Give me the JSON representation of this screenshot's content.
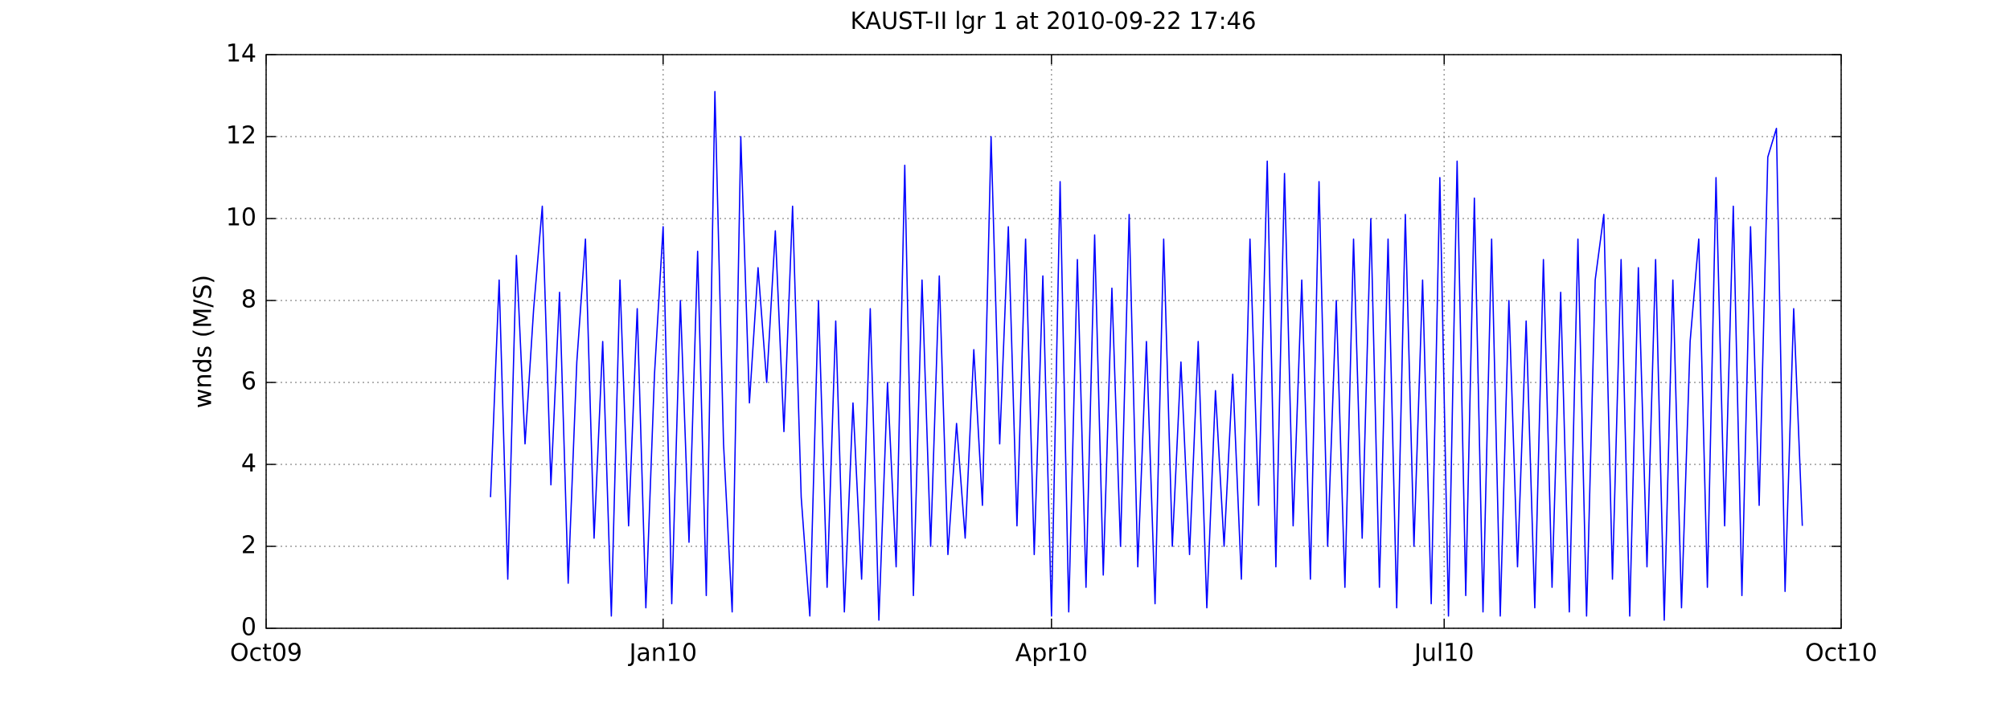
{
  "chart_data": {
    "type": "line",
    "title": "KAUST-II lgr 1 at 2010-09-22 17:46",
    "ylabel": "wnds (M/S)",
    "color": "#0000ff",
    "grid": true,
    "xlim": [
      0,
      365
    ],
    "xticks": [
      {
        "value": 0,
        "label": "Oct09"
      },
      {
        "value": 92,
        "label": "Jan10"
      },
      {
        "value": 182,
        "label": "Apr10"
      },
      {
        "value": 273,
        "label": "Jul10"
      },
      {
        "value": 365,
        "label": "Oct10"
      }
    ],
    "ylim": [
      0,
      14
    ],
    "yticks": [
      0,
      2,
      4,
      6,
      8,
      10,
      12,
      14
    ],
    "x": [
      52,
      54,
      56,
      58,
      60,
      62,
      64,
      66,
      68,
      70,
      72,
      74,
      76,
      78,
      80,
      82,
      84,
      86,
      88,
      90,
      92,
      94,
      96,
      98,
      100,
      102,
      104,
      106,
      108,
      110,
      112,
      114,
      116,
      118,
      120,
      122,
      124,
      126,
      128,
      130,
      132,
      134,
      136,
      138,
      140,
      142,
      144,
      146,
      148,
      150,
      152,
      154,
      156,
      158,
      160,
      162,
      164,
      166,
      168,
      170,
      172,
      174,
      176,
      178,
      180,
      182,
      184,
      186,
      188,
      190,
      192,
      194,
      196,
      198,
      200,
      202,
      204,
      206,
      208,
      210,
      212,
      214,
      216,
      218,
      220,
      222,
      224,
      226,
      228,
      230,
      232,
      234,
      236,
      238,
      240,
      242,
      244,
      246,
      248,
      250,
      252,
      254,
      256,
      258,
      260,
      262,
      264,
      266,
      268,
      270,
      272,
      274,
      276,
      278,
      280,
      282,
      284,
      286,
      288,
      290,
      292,
      294,
      296,
      298,
      300,
      302,
      304,
      306,
      308,
      310,
      312,
      314,
      316,
      318,
      320,
      322,
      324,
      326,
      328,
      330,
      332,
      334,
      336,
      338,
      340,
      342,
      344,
      346,
      348,
      350,
      352,
      354,
      356
    ],
    "values": [
      3.2,
      8.5,
      1.2,
      9.1,
      4.5,
      7.8,
      10.3,
      3.5,
      8.2,
      1.1,
      6.5,
      9.5,
      2.2,
      7.0,
      0.3,
      8.5,
      2.5,
      7.8,
      0.5,
      6.2,
      9.8,
      0.6,
      8.0,
      2.1,
      9.2,
      0.8,
      13.1,
      4.5,
      0.4,
      12.0,
      5.5,
      8.8,
      6.0,
      9.7,
      4.8,
      10.3,
      3.2,
      0.3,
      8.0,
      1.0,
      7.5,
      0.4,
      5.5,
      1.2,
      7.8,
      0.2,
      6.0,
      1.5,
      11.3,
      0.8,
      8.5,
      2.0,
      8.6,
      1.8,
      5.0,
      2.2,
      6.8,
      3.0,
      12.0,
      4.5,
      9.8,
      2.5,
      9.5,
      1.8,
      8.6,
      0.3,
      10.9,
      0.4,
      9.0,
      1.0,
      9.6,
      1.3,
      8.3,
      2.0,
      10.1,
      1.5,
      7.0,
      0.6,
      9.5,
      2.0,
      6.5,
      1.8,
      7.0,
      0.5,
      5.8,
      2.0,
      6.2,
      1.2,
      9.5,
      3.0,
      11.4,
      1.5,
      11.1,
      2.5,
      8.5,
      1.2,
      10.9,
      2.0,
      8.0,
      1.0,
      9.5,
      2.2,
      10.0,
      1.0,
      9.5,
      0.5,
      10.1,
      2.0,
      8.5,
      0.6,
      11.0,
      0.3,
      11.4,
      0.8,
      10.5,
      0.4,
      9.5,
      0.3,
      8.0,
      1.5,
      7.5,
      0.5,
      9.0,
      1.0,
      8.2,
      0.4,
      9.5,
      0.3,
      8.5,
      10.1,
      1.2,
      9.0,
      0.3,
      8.8,
      1.5,
      9.0,
      0.2,
      8.5,
      0.5,
      7.0,
      9.5,
      1.0,
      11.0,
      2.5,
      10.3,
      0.8,
      9.8,
      3.0,
      11.5,
      12.2,
      0.9,
      7.8,
      2.5
    ]
  }
}
